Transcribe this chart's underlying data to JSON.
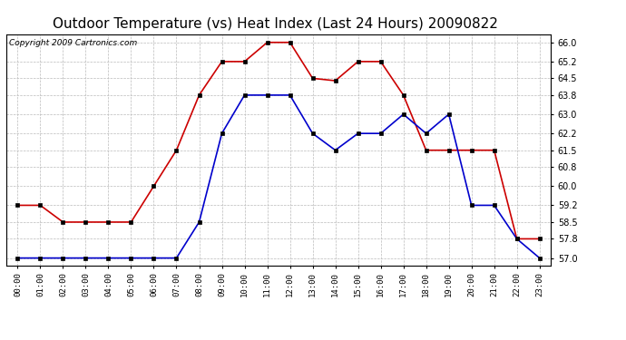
{
  "title": "Outdoor Temperature (vs) Heat Index (Last 24 Hours) 20090822",
  "copyright": "Copyright 2009 Cartronics.com",
  "hours": [
    "00:00",
    "01:00",
    "02:00",
    "03:00",
    "04:00",
    "05:00",
    "06:00",
    "07:00",
    "08:00",
    "09:00",
    "10:00",
    "11:00",
    "12:00",
    "13:00",
    "14:00",
    "15:00",
    "16:00",
    "17:00",
    "18:00",
    "19:00",
    "20:00",
    "21:00",
    "22:00",
    "23:00"
  ],
  "red_data": [
    59.2,
    59.2,
    58.5,
    58.5,
    58.5,
    58.5,
    60.0,
    61.5,
    63.8,
    65.2,
    65.2,
    66.0,
    66.0,
    64.5,
    64.4,
    65.2,
    65.2,
    63.8,
    61.5,
    61.5,
    61.5,
    61.5,
    57.8,
    57.8
  ],
  "blue_data": [
    57.0,
    57.0,
    57.0,
    57.0,
    57.0,
    57.0,
    57.0,
    57.0,
    58.5,
    62.2,
    63.8,
    63.8,
    63.8,
    62.2,
    61.5,
    62.2,
    62.2,
    63.0,
    62.2,
    63.0,
    59.2,
    59.2,
    57.8,
    57.0
  ],
  "ylim_min": 56.7,
  "ylim_max": 66.35,
  "yticks": [
    57.0,
    57.8,
    58.5,
    59.2,
    60.0,
    60.8,
    61.5,
    62.2,
    63.0,
    63.8,
    64.5,
    65.2,
    66.0
  ],
  "red_color": "#cc0000",
  "blue_color": "#0000cc",
  "bg_color": "#ffffff",
  "plot_bg_color": "#ffffff",
  "grid_color": "#bbbbbb",
  "title_fontsize": 11,
  "copyright_fontsize": 6.5
}
